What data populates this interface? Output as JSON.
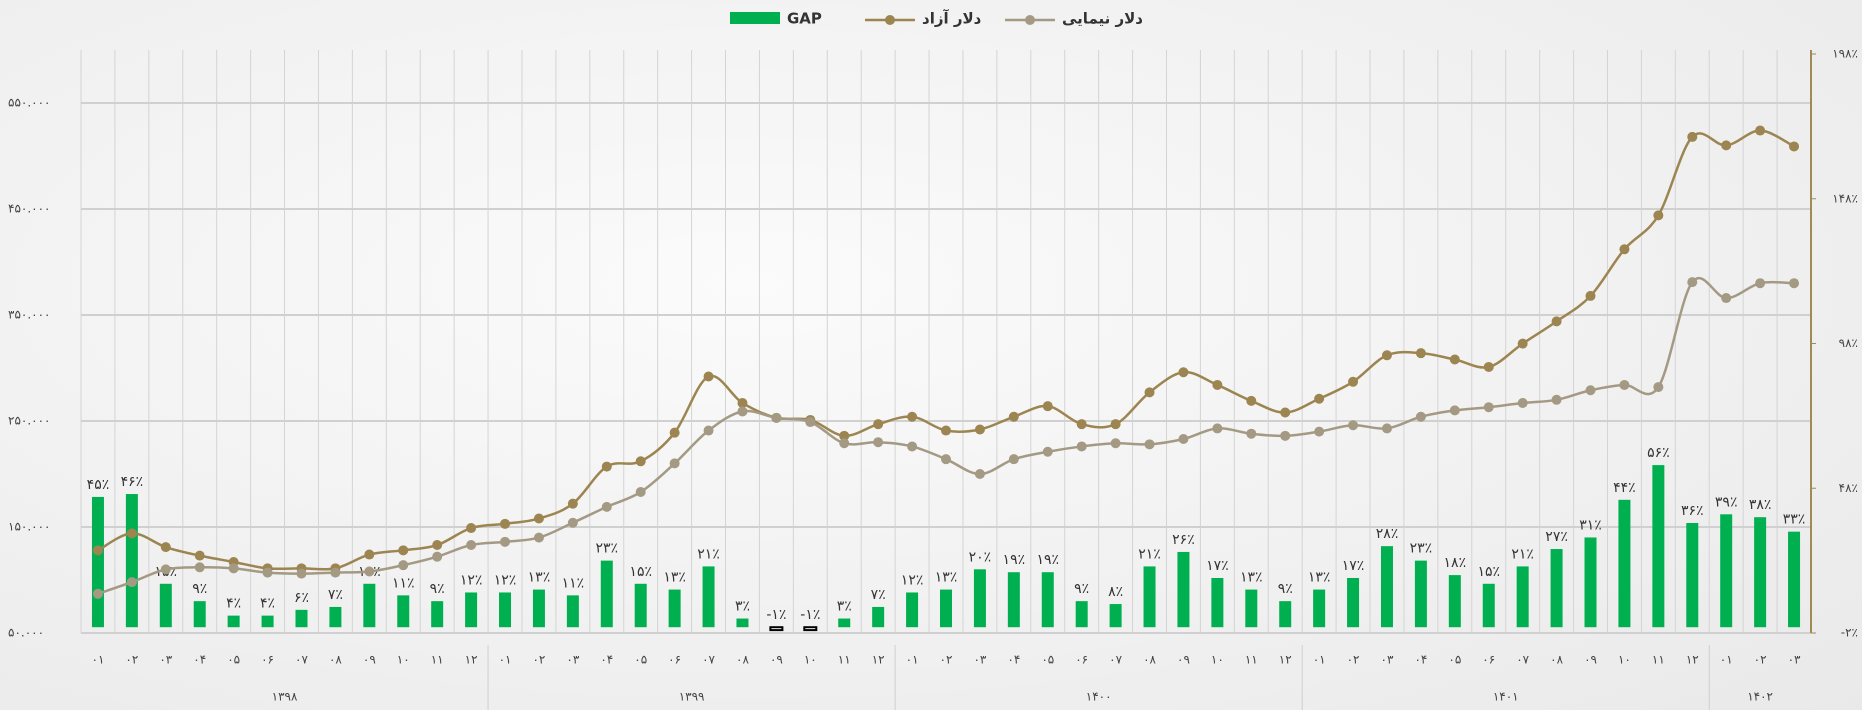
{
  "chart_data": {
    "type": "bar-line",
    "categories": [
      "۰۱",
      "۰۲",
      "۰۳",
      "۰۴",
      "۰۵",
      "۰۶",
      "۰۷",
      "۰۸",
      "۰۹",
      "۱۰",
      "۱۱",
      "۱۲",
      "۰۱",
      "۰۲",
      "۰۳",
      "۰۴",
      "۰۵",
      "۰۶",
      "۰۷",
      "۰۸",
      "۰۹",
      "۱۰",
      "۱۱",
      "۱۲",
      "۰۱",
      "۰۲",
      "۰۳",
      "۰۴",
      "۰۵",
      "۰۶",
      "۰۷",
      "۰۸",
      "۰۹",
      "۱۰",
      "۱۱",
      "۱۲",
      "۰۱",
      "۰۲",
      "۰۳",
      "۰۴",
      "۰۵",
      "۰۶",
      "۰۷",
      "۰۸",
      "۰۹",
      "۱۰",
      "۱۱",
      "۱۲",
      "۰۱",
      "۰۲",
      "۰۳"
    ],
    "years": [
      {
        "label": "۱۳۹۸",
        "span": 12
      },
      {
        "label": "۱۳۹۹",
        "span": 12
      },
      {
        "label": "۱۴۰۰",
        "span": 12
      },
      {
        "label": "۱۴۰۱",
        "span": 12
      },
      {
        "label": "۱۴۰۲",
        "span": 3
      }
    ],
    "series": [
      {
        "name": "GAP",
        "kind": "bar",
        "axis": "y2",
        "color": "#00b050",
        "values": [
          45,
          46,
          15,
          9,
          4,
          4,
          6,
          7,
          15,
          11,
          9,
          12,
          12,
          13,
          11,
          23,
          15,
          13,
          21,
          3,
          -1,
          -1,
          3,
          7,
          12,
          13,
          20,
          19,
          19,
          9,
          8,
          21,
          26,
          17,
          13,
          9,
          13,
          17,
          28,
          23,
          18,
          15,
          21,
          27,
          31,
          44,
          56,
          36,
          39,
          38,
          33
        ],
        "value_labels": [
          "۴۵٪",
          "۴۶٪",
          "۱۵٪",
          "۹٪",
          "۴٪",
          "۴٪",
          "۶٪",
          "۷٪",
          "۱۵٪",
          "۱۱٪",
          "۹٪",
          "۱۲٪",
          "۱۲٪",
          "۱۳٪",
          "۱۱٪",
          "۲۳٪",
          "۱۵٪",
          "۱۳٪",
          "۲۱٪",
          "۳٪",
          "-۱٪",
          "-۱٪",
          "۳٪",
          "۷٪",
          "۱۲٪",
          "۱۳٪",
          "۲۰٪",
          "۱۹٪",
          "۱۹٪",
          "۹٪",
          "۸٪",
          "۲۱٪",
          "۲۶٪",
          "۱۷٪",
          "۱۳٪",
          "۹٪",
          "۱۳٪",
          "۱۷٪",
          "۲۸٪",
          "۲۳٪",
          "۱۸٪",
          "۱۵٪",
          "۲۱٪",
          "۲۷٪",
          "۳۱٪",
          "۴۴٪",
          "۵۶٪",
          "۳۶٪",
          "۳۹٪",
          "۳۸٪",
          "۳۳٪"
        ]
      },
      {
        "name": "دلار آزاد",
        "kind": "line",
        "color": "#9c8550",
        "values": [
          128000,
          144000,
          131000,
          123000,
          117000,
          111000,
          111000,
          111000,
          124000,
          128000,
          133000,
          149000,
          153000,
          158000,
          172000,
          207000,
          212000,
          239000,
          292000,
          267000,
          253000,
          251000,
          236000,
          247000,
          254000,
          241000,
          242000,
          254000,
          264000,
          247000,
          247000,
          277000,
          296000,
          284000,
          269000,
          258000,
          271000,
          287000,
          312000,
          314000,
          308000,
          301000,
          323000,
          344000,
          368000,
          412000,
          444000,
          518000,
          510000,
          524000,
          509000
        ]
      },
      {
        "name": "دلار نیمایی",
        "kind": "line",
        "color": "#a49a84",
        "values": [
          87000,
          98000,
          110000,
          112000,
          111000,
          107000,
          106000,
          107000,
          108000,
          114000,
          122000,
          133000,
          136000,
          140000,
          154000,
          169000,
          183000,
          210000,
          241000,
          259000,
          253000,
          249000,
          229000,
          230000,
          226000,
          214000,
          200000,
          214000,
          221000,
          226000,
          229000,
          228000,
          233000,
          243000,
          238000,
          236000,
          240000,
          246000,
          243000,
          254000,
          260000,
          263000,
          267000,
          270000,
          279000,
          284000,
          282000,
          381000,
          366000,
          380000,
          380000
        ]
      }
    ],
    "ylim": [
      50000,
      600000
    ],
    "yticks": [
      {
        "value": 50000,
        "label": "۵۰.۰۰۰"
      },
      {
        "value": 150000,
        "label": "۱۵۰.۰۰۰"
      },
      {
        "value": 250000,
        "label": "۲۵۰.۰۰۰"
      },
      {
        "value": 350000,
        "label": "۳۵۰.۰۰۰"
      },
      {
        "value": 450000,
        "label": "۴۵۰.۰۰۰"
      },
      {
        "value": 550000,
        "label": "۵۵۰.۰۰۰"
      }
    ],
    "y2lim": [
      -2,
      198
    ],
    "y2ticks": [
      {
        "value": -2,
        "label": "-۲٪"
      },
      {
        "value": 48,
        "label": "۴۸٪"
      },
      {
        "value": 98,
        "label": "۹۸٪"
      },
      {
        "value": 148,
        "label": "۱۴۸٪"
      },
      {
        "value": 198,
        "label": "۱۹۸٪"
      }
    ],
    "grid": true
  }
}
